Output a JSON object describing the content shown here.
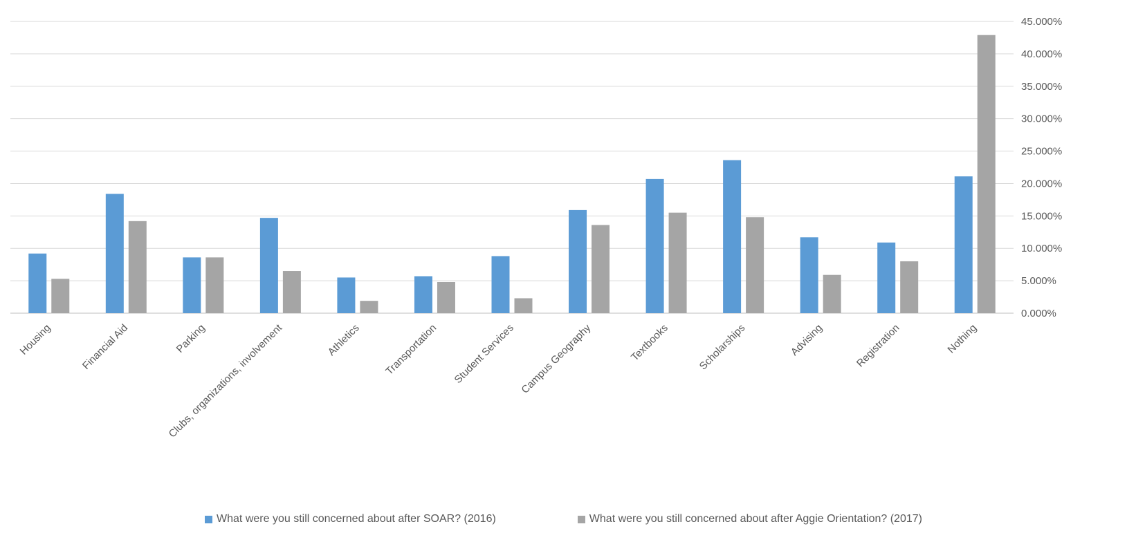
{
  "chart_data": {
    "type": "bar",
    "categories": [
      "Housing",
      "Financial Aid",
      "Parking",
      "Clubs, organizations, involvement",
      "Athletics",
      "Transportation",
      "Student Services",
      "Campus Geography",
      "Textbooks",
      "Scholarships",
      "Advising",
      "Registration",
      "Nothing"
    ],
    "series": [
      {
        "name": "What were you still concerned about after SOAR? (2016)",
        "color": "#5b9bd5",
        "values": [
          9.2,
          18.4,
          8.6,
          14.7,
          5.5,
          5.7,
          8.8,
          15.9,
          20.7,
          23.6,
          11.7,
          10.9,
          21.1
        ]
      },
      {
        "name": "What were you still concerned about after Aggie Orientation? (2017)",
        "color": "#a5a5a5",
        "values": [
          5.3,
          14.2,
          8.6,
          6.5,
          1.9,
          4.8,
          2.3,
          13.6,
          15.5,
          14.8,
          5.9,
          8.0,
          42.9
        ]
      }
    ],
    "y_ticks": [
      "0.000%",
      "5.000%",
      "10.000%",
      "15.000%",
      "20.000%",
      "25.000%",
      "30.000%",
      "35.000%",
      "40.000%",
      "45.000%"
    ],
    "ylim": [
      0,
      45
    ],
    "y_axis_side": "right",
    "grid": true,
    "legend_position": "bottom",
    "title": "",
    "xlabel": "",
    "ylabel": ""
  }
}
